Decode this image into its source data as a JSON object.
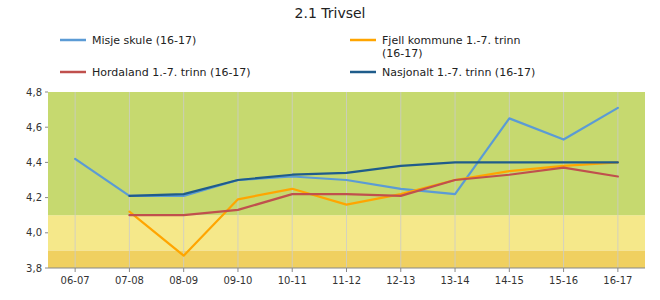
{
  "chart_data": {
    "type": "line",
    "title": "2.1 Trivsel",
    "categories": [
      "06-07",
      "07-08",
      "08-09",
      "09-10",
      "10-11",
      "11-12",
      "12-13",
      "13-14",
      "14-15",
      "15-16",
      "16-17"
    ],
    "ylim": [
      3.8,
      4.8
    ],
    "yticks": [
      {
        "value": 3.8,
        "label": "3,8"
      },
      {
        "value": 4.0,
        "label": "4,0"
      },
      {
        "value": 4.2,
        "label": "4,2"
      },
      {
        "value": 4.4,
        "label": "4,4"
      },
      {
        "value": 4.6,
        "label": "4,6"
      },
      {
        "value": 4.8,
        "label": "4,8"
      }
    ],
    "series": [
      {
        "name": "Misje skule (16-17)",
        "color": "#5B9BD5",
        "values": [
          4.42,
          4.21,
          4.21,
          4.3,
          4.32,
          4.3,
          4.25,
          4.22,
          4.65,
          4.53,
          4.71
        ]
      },
      {
        "name": "Fjell kommune 1.-7. trinn\n(16-17)",
        "color": "#FFA500",
        "values": [
          null,
          4.12,
          3.87,
          4.19,
          4.25,
          4.16,
          4.22,
          4.3,
          4.35,
          4.38,
          4.4
        ]
      },
      {
        "name": "Hordaland 1.-7. trinn (16-17)",
        "color": "#C0504D",
        "values": [
          null,
          4.1,
          4.1,
          4.13,
          4.22,
          4.22,
          4.21,
          4.3,
          4.33,
          4.37,
          4.32
        ]
      },
      {
        "name": "Nasjonalt 1.-7. trinn (16-17)",
        "color": "#1F5C8B",
        "values": [
          null,
          4.21,
          4.22,
          4.3,
          4.33,
          4.34,
          4.38,
          4.4,
          4.4,
          4.4,
          4.4
        ]
      }
    ],
    "bands": [
      {
        "from": 3.8,
        "to": 3.9,
        "color": "#F0D060"
      },
      {
        "from": 3.9,
        "to": 4.1,
        "color": "#F5E88A"
      },
      {
        "from": 4.1,
        "to": 4.8,
        "color": "#C6D96F"
      }
    ],
    "grid": true,
    "legend": "top"
  }
}
